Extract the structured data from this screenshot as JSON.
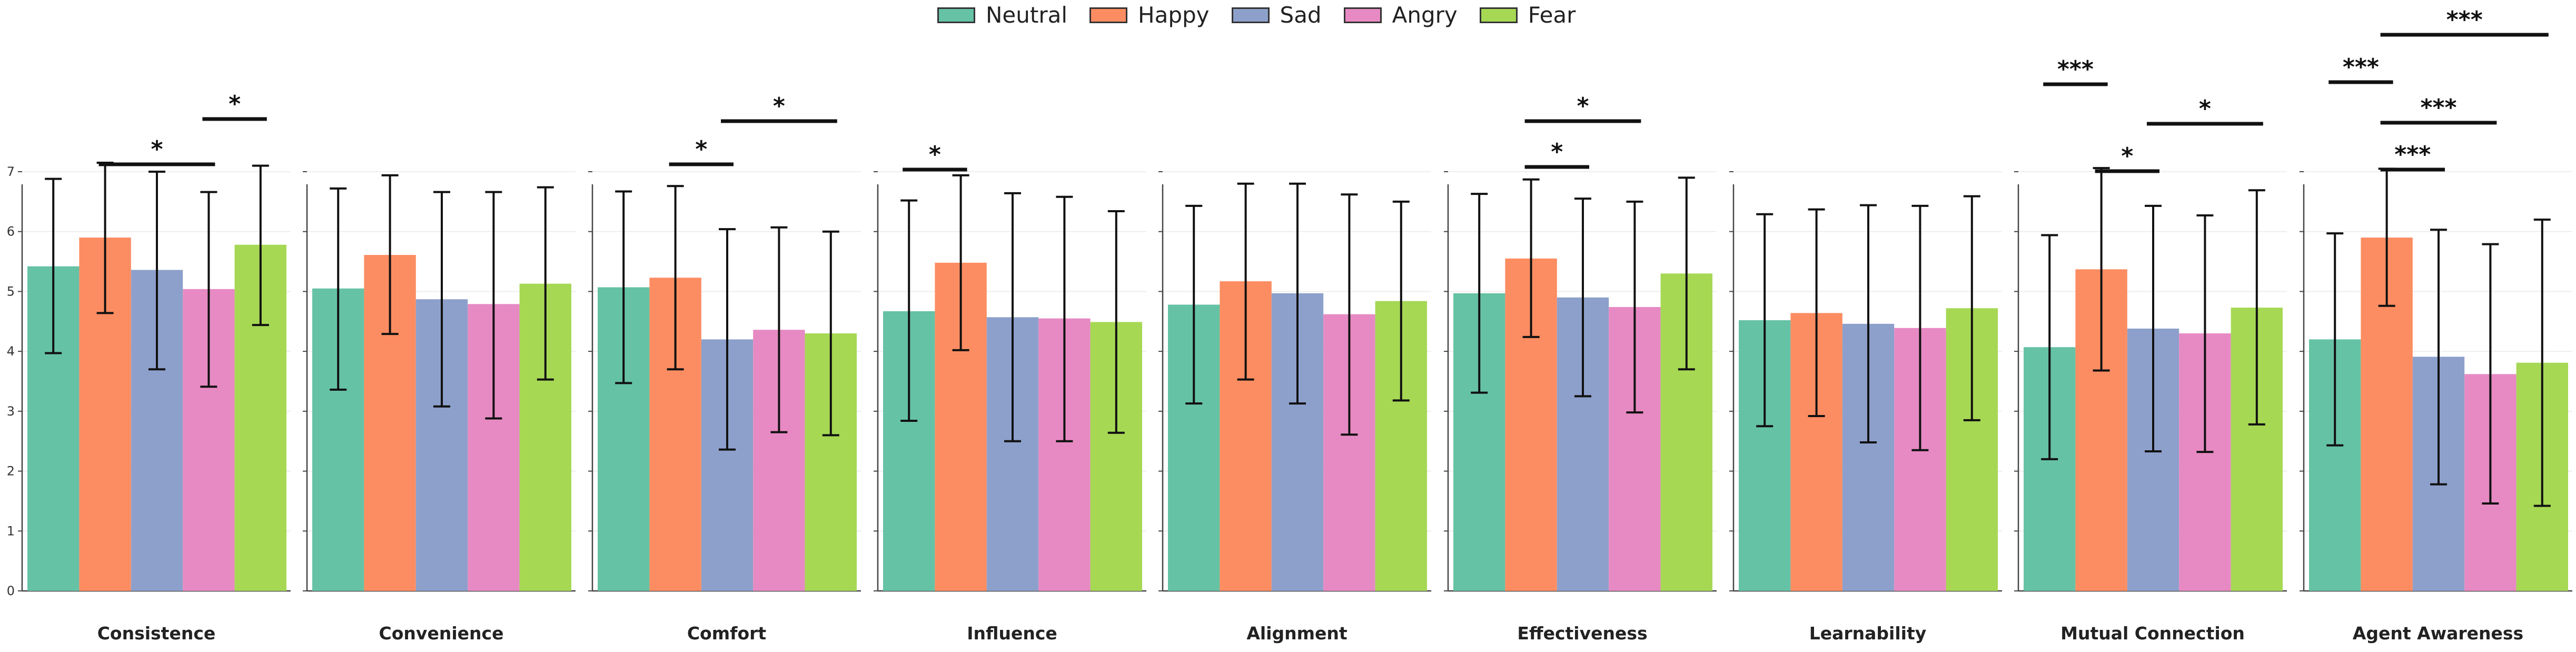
{
  "chart_data": {
    "type": "bar",
    "layout": "small-multiples",
    "series_names": [
      "Neutral",
      "Happy",
      "Sad",
      "Angry",
      "Fear"
    ],
    "colors": {
      "Neutral": "#66c2a5",
      "Happy": "#fc8d62",
      "Sad": "#8da0cb",
      "Angry": "#e78ac3",
      "Fear": "#a6d854"
    },
    "ylim": [
      0,
      7.2
    ],
    "yticks": [
      "0",
      "1",
      "2",
      "3",
      "4",
      "5",
      "6",
      "7"
    ],
    "panels": [
      {
        "title": "Consistence",
        "values": [
          5.42,
          5.9,
          5.36,
          5.04,
          5.78
        ],
        "err_low": [
          3.97,
          4.64,
          3.7,
          3.41,
          4.44
        ],
        "err_high": [
          6.88,
          7.15,
          7.0,
          6.66,
          7.1
        ],
        "significance": [
          {
            "from": 1,
            "to": 3,
            "label": "*",
            "level": 1
          },
          {
            "from": 3,
            "to": 4,
            "label": "*",
            "level": 2
          }
        ]
      },
      {
        "title": "Convenience",
        "values": [
          5.05,
          5.61,
          4.87,
          4.79,
          5.13
        ],
        "err_low": [
          3.36,
          4.29,
          3.08,
          2.88,
          3.53
        ],
        "err_high": [
          6.72,
          6.94,
          6.66,
          6.66,
          6.74
        ],
        "significance": []
      },
      {
        "title": "Comfort",
        "values": [
          5.07,
          5.23,
          4.2,
          4.36,
          4.3
        ],
        "err_low": [
          3.47,
          3.7,
          2.36,
          2.65,
          2.6
        ],
        "err_high": [
          6.67,
          6.76,
          6.04,
          6.07,
          6.0
        ],
        "significance": [
          {
            "from": 1,
            "to": 2,
            "label": "*",
            "level": 1
          },
          {
            "from": 2,
            "to": 4,
            "label": "*",
            "level": 2
          }
        ]
      },
      {
        "title": "Influence",
        "values": [
          4.67,
          5.48,
          4.57,
          4.55,
          4.49
        ],
        "err_low": [
          2.84,
          4.02,
          2.5,
          2.5,
          2.64
        ],
        "err_high": [
          6.52,
          6.94,
          6.64,
          6.58,
          6.34
        ],
        "significance": [
          {
            "from": 0,
            "to": 1,
            "label": "*",
            "level": 1
          }
        ]
      },
      {
        "title": "Alignment",
        "values": [
          4.78,
          5.17,
          4.97,
          4.62,
          4.84
        ],
        "err_low": [
          3.13,
          3.53,
          3.13,
          2.61,
          3.18
        ],
        "err_high": [
          6.43,
          6.8,
          6.8,
          6.62,
          6.5
        ],
        "significance": []
      },
      {
        "title": "Effectiveness",
        "values": [
          4.97,
          5.55,
          4.9,
          4.74,
          5.3
        ],
        "err_low": [
          3.31,
          4.24,
          3.25,
          2.98,
          3.7
        ],
        "err_high": [
          6.63,
          6.87,
          6.55,
          6.5,
          6.9
        ],
        "significance": [
          {
            "from": 1,
            "to": 2,
            "label": "*",
            "level": 1
          },
          {
            "from": 1,
            "to": 3,
            "label": "*",
            "level": 2
          }
        ]
      },
      {
        "title": "Learnability",
        "values": [
          4.52,
          4.64,
          4.46,
          4.39,
          4.72
        ],
        "err_low": [
          2.75,
          2.92,
          2.48,
          2.35,
          2.85
        ],
        "err_high": [
          6.29,
          6.37,
          6.44,
          6.43,
          6.59
        ],
        "significance": []
      },
      {
        "title": "Mutual Connection",
        "values": [
          4.07,
          5.37,
          4.38,
          4.3,
          4.73
        ],
        "err_low": [
          2.2,
          3.68,
          2.33,
          2.32,
          2.78
        ],
        "err_high": [
          5.94,
          7.06,
          6.43,
          6.27,
          6.69
        ],
        "significance": [
          {
            "from": 1,
            "to": 2,
            "label": "*",
            "level": 1
          },
          {
            "from": 2,
            "to": 4,
            "label": "*",
            "level": 2
          },
          {
            "from": 0,
            "to": 1,
            "label": "***",
            "level": 3
          }
        ]
      },
      {
        "title": "Agent Awareness",
        "values": [
          4.2,
          5.9,
          3.91,
          3.62,
          3.81
        ],
        "err_low": [
          2.43,
          4.76,
          1.78,
          1.46,
          1.42
        ],
        "err_high": [
          5.97,
          7.05,
          6.03,
          5.79,
          6.2
        ],
        "significance": [
          {
            "from": 1,
            "to": 2,
            "label": "***",
            "level": 1
          },
          {
            "from": 1,
            "to": 3,
            "label": "***",
            "level": 2
          },
          {
            "from": 0,
            "to": 1,
            "label": "***",
            "level": 3
          },
          {
            "from": 1,
            "to": 4,
            "label": "***",
            "level": 4
          }
        ]
      }
    ]
  }
}
